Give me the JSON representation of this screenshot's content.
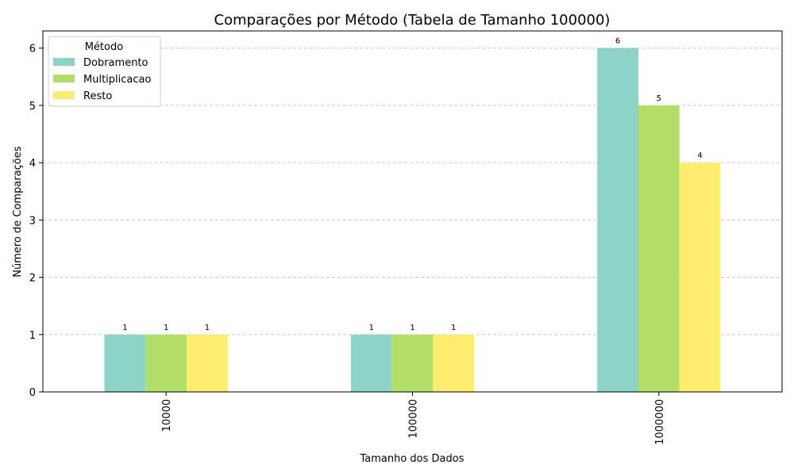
{
  "chart_data": {
    "type": "bar",
    "title": "Comparações por Método (Tabela de Tamanho 100000)",
    "xlabel": "Tamanho dos Dados",
    "ylabel": "Número de Comparações",
    "categories": [
      "10000",
      "100000",
      "1000000"
    ],
    "series": [
      {
        "name": "Dobramento",
        "values": [
          1,
          1,
          6
        ],
        "color": "#8dd3c7"
      },
      {
        "name": "Multiplicacao",
        "values": [
          1,
          1,
          5
        ],
        "color": "#b3de69"
      },
      {
        "name": "Resto",
        "values": [
          1,
          1,
          4
        ],
        "color": "#ffed6f"
      }
    ],
    "ylim": [
      0,
      6.3
    ],
    "yticks": [
      0,
      1,
      2,
      3,
      4,
      5,
      6
    ],
    "grid": "y-dashed",
    "legend": {
      "title": "Método",
      "position": "top-left"
    },
    "data_labels": true,
    "xtick_rotation": 90
  }
}
